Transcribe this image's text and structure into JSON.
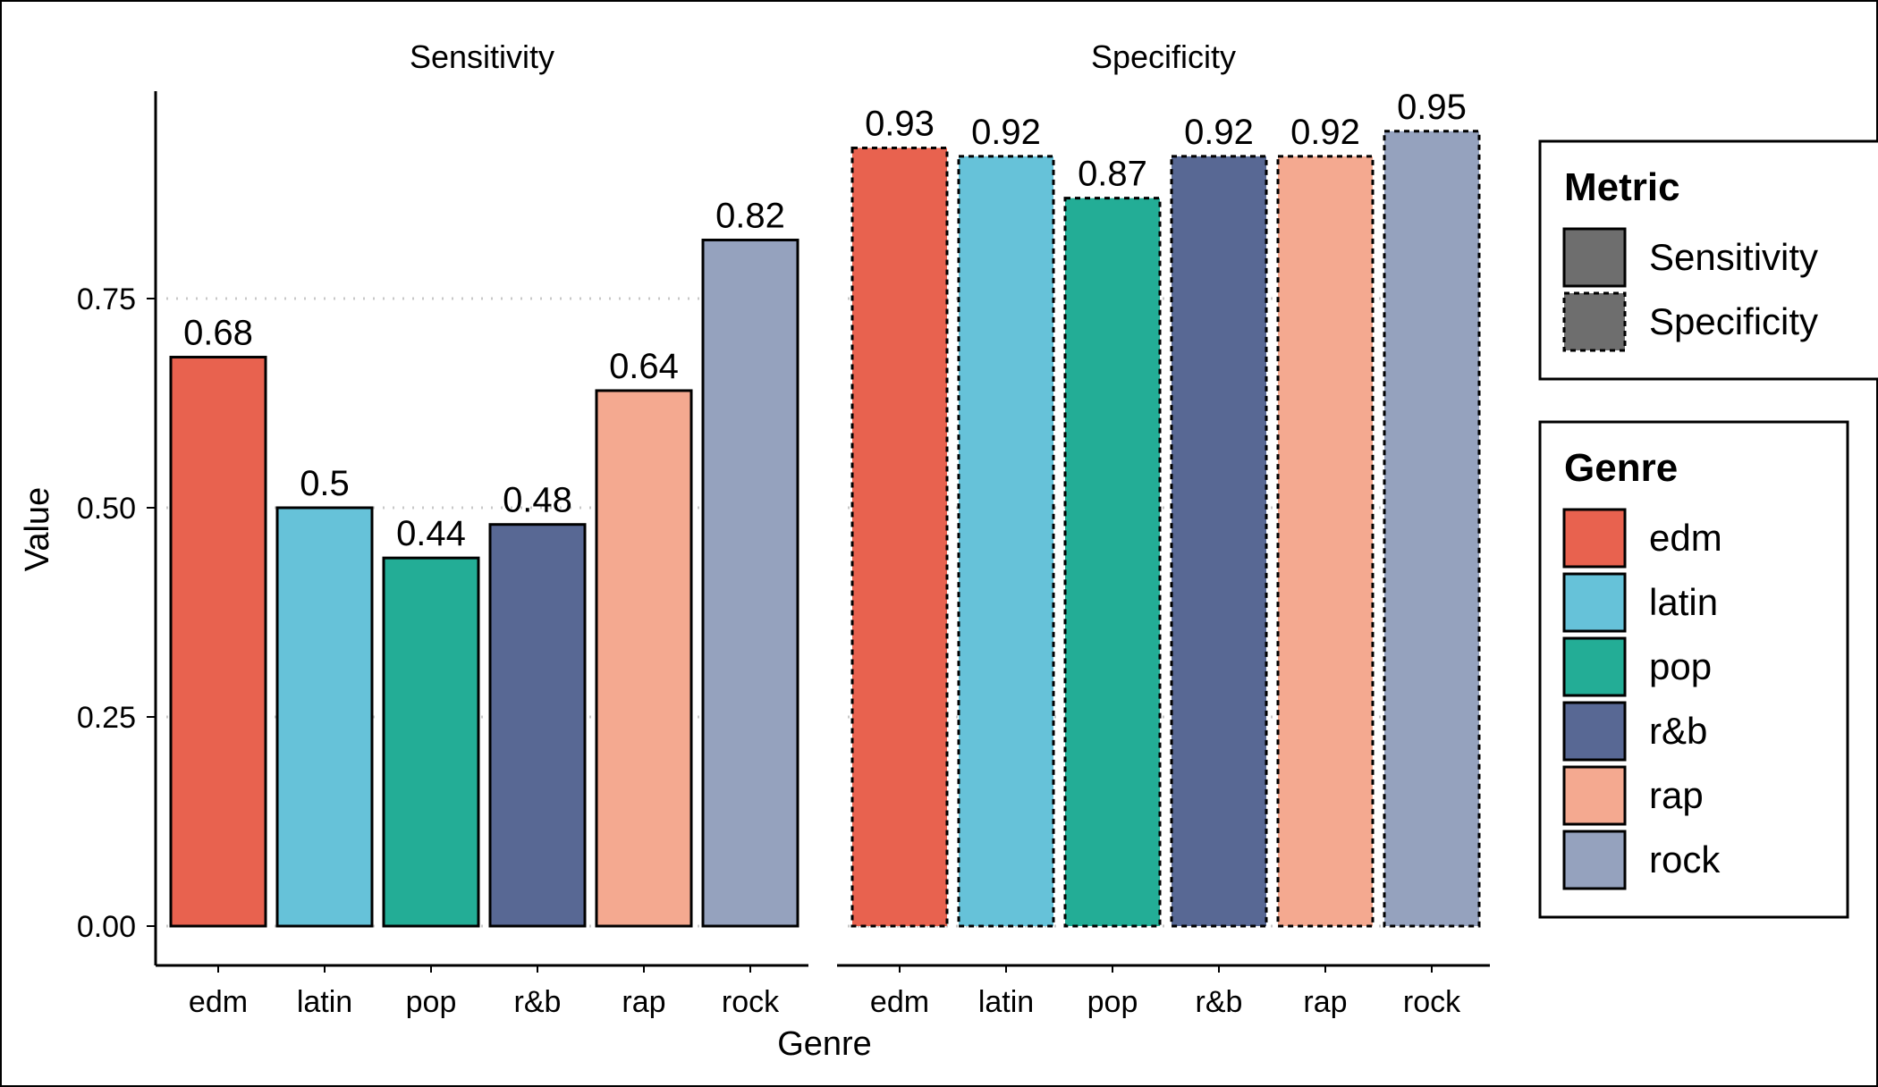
{
  "chart_data": {
    "type": "bar",
    "xlabel": "Genre",
    "ylabel": "Value",
    "ylim": [
      0,
      0.95
    ],
    "y_ticks": [
      0,
      0.25,
      0.5,
      0.75
    ],
    "y_tick_labels": [
      "0.00",
      "0.25",
      "0.50",
      "0.75"
    ],
    "grid": "horizontal dotted lines at major ticks",
    "categories": [
      "edm",
      "latin",
      "pop",
      "r&b",
      "rap",
      "rock"
    ],
    "facets": [
      {
        "name": "Sensitivity",
        "line_style": "solid",
        "values": [
          0.68,
          0.5,
          0.44,
          0.48,
          0.64,
          0.82
        ],
        "labels": [
          "0.68",
          "0.5",
          "0.44",
          "0.48",
          "0.64",
          "0.82"
        ]
      },
      {
        "name": "Specificity",
        "line_style": "dashed",
        "values": [
          0.93,
          0.92,
          0.87,
          0.92,
          0.92,
          0.95
        ],
        "labels": [
          "0.93",
          "0.92",
          "0.87",
          "0.92",
          "0.92",
          "0.95"
        ]
      }
    ],
    "genre_colors": [
      "#E8624F",
      "#66C2D9",
      "#23AD96",
      "#586894",
      "#F4A990",
      "#95A2BE"
    ],
    "legend_position": "right",
    "legends": [
      {
        "title": "Metric",
        "items": [
          {
            "label": "Sensitivity",
            "line_style": "solid",
            "color": "#6E6E6E"
          },
          {
            "label": "Specificity",
            "line_style": "dashed",
            "color": "#6E6E6E"
          }
        ]
      },
      {
        "title": "Genre",
        "items": [
          {
            "label": "edm",
            "color": "#E8624F"
          },
          {
            "label": "latin",
            "color": "#66C2D9"
          },
          {
            "label": "pop",
            "color": "#23AD96"
          },
          {
            "label": "r&b",
            "color": "#586894"
          },
          {
            "label": "rap",
            "color": "#F4A990"
          },
          {
            "label": "rock",
            "color": "#95A2BE"
          }
        ]
      }
    ]
  }
}
